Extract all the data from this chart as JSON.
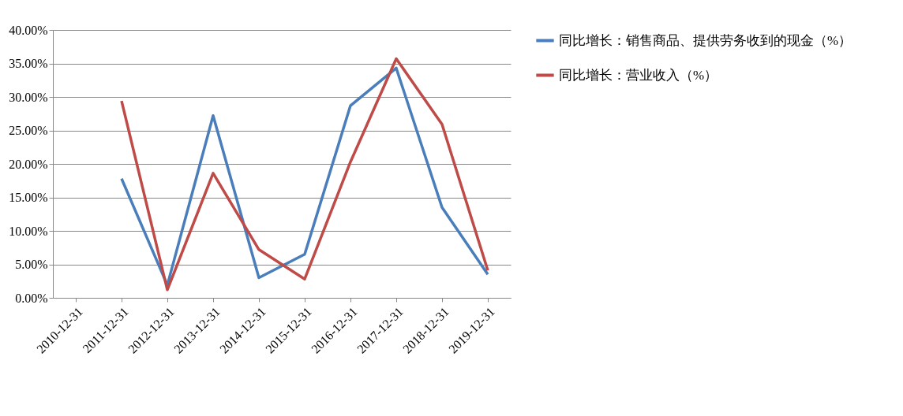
{
  "chart_data": {
    "type": "line",
    "categories": [
      "2010-12-31",
      "2011-12-31",
      "2012-12-31",
      "2013-12-31",
      "2014-12-31",
      "2015-12-31",
      "2016-12-31",
      "2017-12-31",
      "2018-12-31",
      "2019-12-31"
    ],
    "series": [
      {
        "name": "同比增长：销售商品、提供劳务收到的现金（%）",
        "color": "#4a7ebb",
        "values": [
          null,
          17.8,
          1.9,
          27.2,
          3.0,
          6.5,
          28.7,
          34.3,
          13.5,
          3.5
        ]
      },
      {
        "name": "同比增长：营业收入（%）",
        "color": "#be4b48",
        "values": [
          null,
          29.4,
          1.2,
          18.6,
          7.2,
          2.8,
          20.3,
          35.7,
          25.9,
          4.1
        ]
      }
    ],
    "ylim": [
      0,
      40
    ],
    "yticks": [
      {
        "value": 0,
        "label": "0.00%"
      },
      {
        "value": 5,
        "label": "5.00%"
      },
      {
        "value": 10,
        "label": "10.00%"
      },
      {
        "value": 15,
        "label": "15.00%"
      },
      {
        "value": 20,
        "label": "20.00%"
      },
      {
        "value": 25,
        "label": "25.00%"
      },
      {
        "value": 30,
        "label": "30.00%"
      },
      {
        "value": 35,
        "label": "35.00%"
      },
      {
        "value": 40,
        "label": "40.00%"
      }
    ],
    "grid": "y",
    "legend": "right",
    "marker": "none",
    "line_style": "solid"
  }
}
